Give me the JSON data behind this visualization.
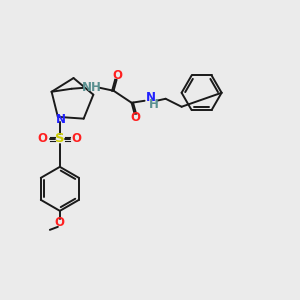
{
  "background_color": "#ebebeb",
  "bond_color": "#1a1a1a",
  "atom_colors": {
    "N": "#2020ff",
    "O": "#ff2020",
    "S": "#cccc00",
    "C": "#1a1a1a",
    "H": "#5a9090"
  },
  "figsize": [
    3.0,
    3.0
  ],
  "dpi": 100
}
